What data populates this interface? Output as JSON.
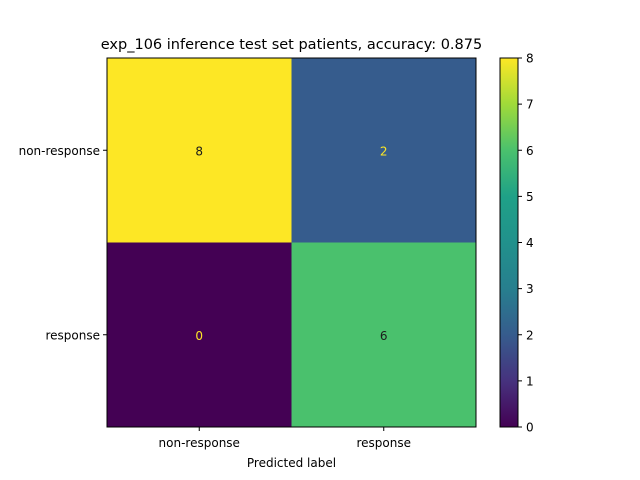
{
  "chart_data": {
    "type": "heatmap",
    "title": "exp_106 inference test set patients, accuracy: 0.875",
    "xlabel": "Predicted label",
    "ylabel": "",
    "x_categories": [
      "non-response",
      "response"
    ],
    "y_categories": [
      "non-response",
      "response"
    ],
    "values": [
      [
        8,
        2
      ],
      [
        0,
        6
      ]
    ],
    "colormap": "viridis",
    "colorbar": {
      "min": 0,
      "max": 8,
      "ticks": [
        "0",
        "1",
        "2",
        "3",
        "4",
        "5",
        "6",
        "7",
        "8"
      ]
    },
    "cell_text_colors": {
      "dark": "#fde725",
      "light": "#1b1b1b"
    }
  }
}
